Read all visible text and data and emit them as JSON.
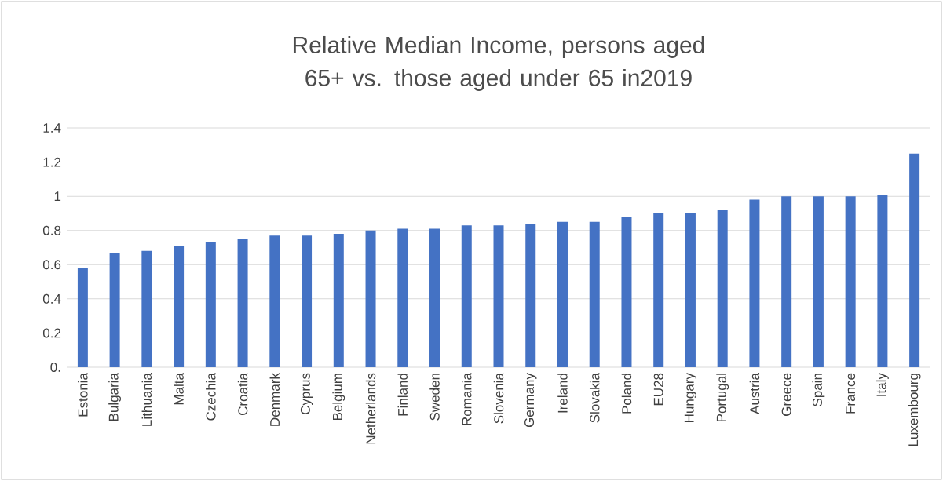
{
  "chart_data": {
    "type": "bar",
    "title": "Relative Median Income, persons aged 65+ vs. those aged under 65 in2019",
    "categories": [
      "Estonia",
      "Bulgaria",
      "Lithuania",
      "Malta",
      "Czechia",
      "Croatia",
      "Denmark",
      "Cyprus",
      "Belgium",
      "Netherlands",
      "Finland",
      "Sweden",
      "Romania",
      "Slovenia",
      "Germany",
      "Ireland",
      "Slovakia",
      "Poland",
      "EU28",
      "Hungary",
      "Portugal",
      "Austria",
      "Greece",
      "Spain",
      "France",
      "Italy",
      "Luxembourg"
    ],
    "values": [
      0.58,
      0.67,
      0.68,
      0.71,
      0.73,
      0.75,
      0.77,
      0.77,
      0.78,
      0.8,
      0.81,
      0.81,
      0.83,
      0.83,
      0.84,
      0.85,
      0.85,
      0.88,
      0.9,
      0.9,
      0.92,
      0.98,
      1.0,
      1.0,
      1.0,
      1.01,
      1.25
    ],
    "color": "#4472c4",
    "ylim": [
      0,
      1.4
    ],
    "yticks": [
      {
        "value": 0,
        "label": "0."
      },
      0.2,
      0.4,
      0.6,
      0.8,
      1,
      1.2,
      1.4
    ],
    "grid": "y"
  }
}
